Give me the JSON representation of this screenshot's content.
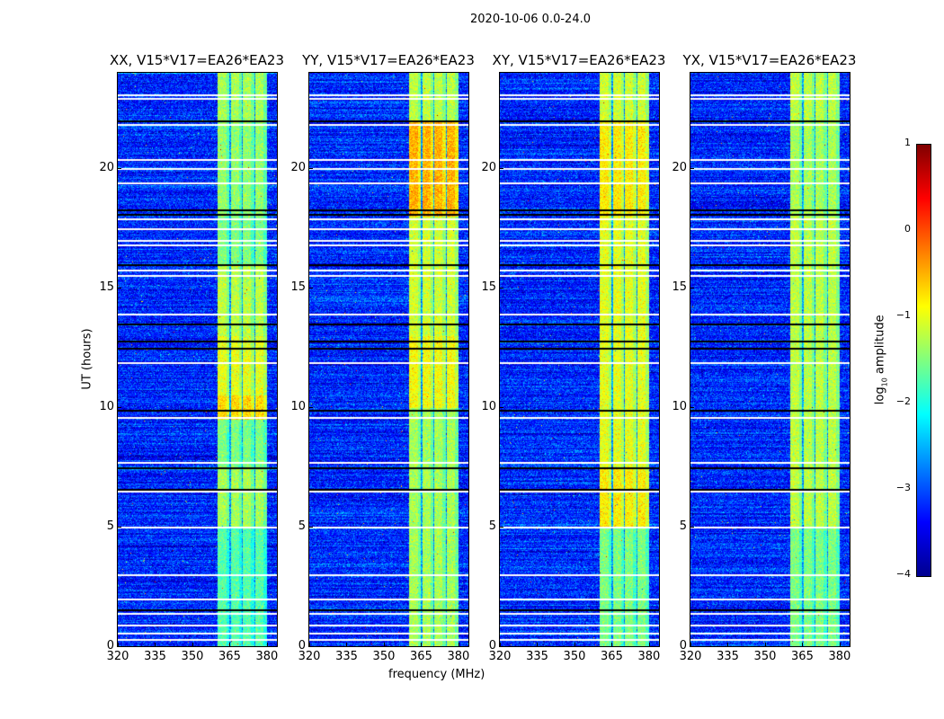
{
  "suptitle": "2020-10-06 0.0-24.0",
  "chart_data": {
    "type": "heatmap",
    "xlabel": "frequency (MHz)",
    "ylabel": "UT (hours)",
    "xlim": [
      320,
      384
    ],
    "ylim": [
      0,
      24
    ],
    "xticks": [
      "320",
      "335",
      "350",
      "365",
      "380"
    ],
    "yticks": [
      "0",
      "5",
      "10",
      "15",
      "20"
    ],
    "colormap": "jet",
    "colorbar": {
      "label": "log10 amplitude",
      "label_main": "log",
      "label_sub": "10",
      "label_rest": " amplitude",
      "range": [
        -4,
        1
      ],
      "ticks": [
        "1",
        "0",
        "−1",
        "−2",
        "−3",
        "−4"
      ]
    },
    "background_level": -3.2,
    "rfi_subbands_mhz": [
      [
        360,
        364.6
      ],
      [
        365.2,
        369.6
      ],
      [
        370.2,
        374.6
      ],
      [
        375.2,
        380
      ]
    ],
    "flagged_white_hours": [
      0.3,
      0.55,
      0.9,
      1.4,
      2.0,
      3.0,
      5.0,
      6.5,
      7.7,
      9.6,
      11.9,
      13.9,
      15.55,
      15.75,
      16.8,
      17.0,
      17.5,
      17.9,
      19.4,
      20.0,
      20.4,
      21.85,
      22.95,
      23.1
    ],
    "flagged_black_hours": [
      1.55,
      6.6,
      7.5,
      9.9,
      12.5,
      12.8,
      13.5,
      16.0,
      18.3,
      18.1,
      22.0
    ],
    "panels": [
      {
        "title": "XX, V15*V17=EA26*EA23",
        "band_levels": [
          [
            0,
            5,
            -1.7
          ],
          [
            5,
            7.5,
            -1.3
          ],
          [
            7.5,
            9.5,
            -1.5
          ],
          [
            9.5,
            10.5,
            -0.7
          ],
          [
            10.5,
            13,
            -1.0
          ],
          [
            13,
            16,
            -1.2
          ],
          [
            16,
            18,
            -1.5
          ],
          [
            18,
            22,
            -1.4
          ],
          [
            22,
            24,
            -1.3
          ]
        ]
      },
      {
        "title": "YY, V15*V17=EA26*EA23",
        "band_levels": [
          [
            0,
            7.5,
            -1.3
          ],
          [
            7.5,
            10,
            -1.3
          ],
          [
            10,
            13,
            -0.9
          ],
          [
            13,
            18,
            -1.1
          ],
          [
            18,
            22,
            -0.5
          ],
          [
            22,
            24,
            -1.2
          ]
        ]
      },
      {
        "title": "XY, V15*V17=EA26*EA23",
        "band_levels": [
          [
            0,
            5,
            -1.5
          ],
          [
            5,
            7.5,
            -0.8
          ],
          [
            7.5,
            10,
            -1.0
          ],
          [
            10,
            18,
            -1.0
          ],
          [
            18,
            22,
            -0.8
          ],
          [
            22,
            24,
            -1.1
          ]
        ]
      },
      {
        "title": "YX, V15*V17=EA26*EA23",
        "band_levels": [
          [
            0,
            5,
            -1.5
          ],
          [
            5,
            10,
            -1.2
          ],
          [
            10,
            18,
            -1.2
          ],
          [
            18,
            22,
            -1.3
          ],
          [
            22,
            24,
            -1.2
          ]
        ]
      }
    ]
  }
}
